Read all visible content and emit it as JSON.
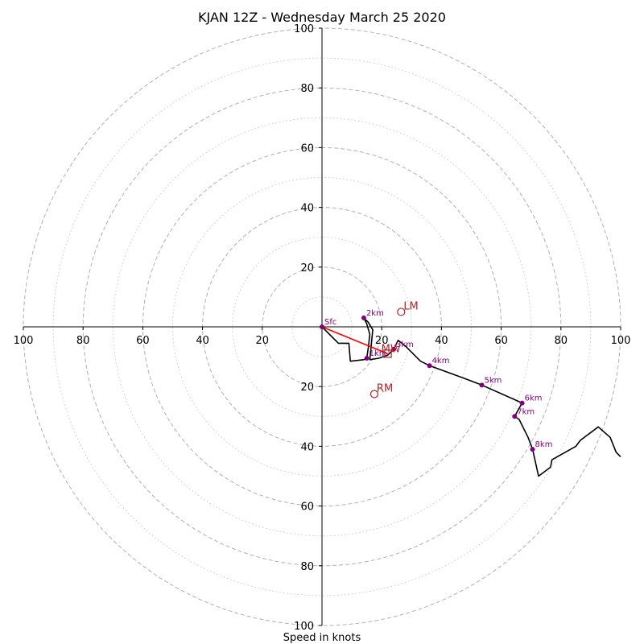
{
  "chart_data": {
    "type": "hodograph",
    "title": "KJAN 12Z - Wednesday March 25 2020",
    "xlabel": "Speed in knots",
    "xlim": [
      -100,
      100
    ],
    "ylim": [
      -100,
      100
    ],
    "rings_major": [
      20,
      40,
      60,
      80,
      100
    ],
    "rings_minor": [
      10,
      30,
      50,
      70,
      90
    ],
    "x_ticks": [
      "100",
      "80",
      "60",
      "40",
      "20",
      "20",
      "40",
      "60",
      "80",
      "100"
    ],
    "y_ticks": [
      "100",
      "80",
      "60",
      "40",
      "20",
      "20",
      "40",
      "60",
      "80",
      "100"
    ],
    "x_tick_values": [
      -100,
      -80,
      -60,
      -40,
      -20,
      20,
      40,
      60,
      80,
      100
    ],
    "y_tick_values": [
      100,
      80,
      60,
      40,
      20,
      -20,
      -40,
      -60,
      -80,
      -100
    ],
    "trace": [
      [
        0,
        0
      ],
      [
        5.5,
        -5.5
      ],
      [
        9,
        -5.5
      ],
      [
        9.5,
        -11.5
      ],
      [
        14,
        -11
      ],
      [
        15,
        -10.5
      ],
      [
        15.5,
        -7
      ],
      [
        16,
        -2.5
      ],
      [
        15,
        1
      ],
      [
        14,
        3
      ],
      [
        15.5,
        1.5
      ],
      [
        17,
        -1
      ],
      [
        16.5,
        -6
      ],
      [
        16,
        -11
      ],
      [
        19,
        -10.5
      ],
      [
        22,
        -9.5
      ],
      [
        24,
        -7.5
      ],
      [
        25.5,
        -4.5
      ],
      [
        28,
        -6.5
      ],
      [
        33,
        -11.5
      ],
      [
        36,
        -13
      ],
      [
        47,
        -17
      ],
      [
        53.5,
        -19.5
      ],
      [
        67,
        -25.5
      ],
      [
        64.5,
        -30
      ],
      [
        66,
        -31
      ],
      [
        69,
        -37
      ],
      [
        70.5,
        -41
      ],
      [
        72.5,
        -50
      ],
      [
        76.5,
        -47
      ],
      [
        77,
        -44.5
      ],
      [
        85,
        -40
      ],
      [
        86.5,
        -38
      ],
      [
        92.5,
        -33.5
      ],
      [
        96.5,
        -37
      ],
      [
        98.5,
        -42
      ],
      [
        100,
        -43.5
      ]
    ],
    "height_markers": [
      {
        "label": "Sfc",
        "x": 0,
        "y": 0
      },
      {
        "label": "1km",
        "x": 15,
        "y": -10.5
      },
      {
        "label": "2km",
        "x": 14,
        "y": 3
      },
      {
        "label": "3km",
        "x": 24,
        "y": -7.5
      },
      {
        "label": "4km",
        "x": 36,
        "y": -13
      },
      {
        "label": "5km",
        "x": 53.5,
        "y": -19.5
      },
      {
        "label": "6km",
        "x": 67,
        "y": -25.5
      },
      {
        "label": "7km",
        "x": 64.5,
        "y": -30
      },
      {
        "label": "8km",
        "x": 70.5,
        "y": -41
      }
    ],
    "storm_motions": [
      {
        "label": "LM",
        "x": 26.5,
        "y": 5
      },
      {
        "label": "RM",
        "x": 17.5,
        "y": -22.5
      },
      {
        "label": "MW",
        "x": 22,
        "y": -9
      }
    ],
    "shear_vector": {
      "from": [
        0,
        0
      ],
      "to": [
        22,
        -9
      ]
    },
    "colors": {
      "trace": "#000000",
      "marker": "#800080",
      "motion": "#b22222",
      "shear": "#ff0000",
      "ring_major": "#b0b0b0",
      "ring_minor": "#c8c8c8"
    }
  }
}
